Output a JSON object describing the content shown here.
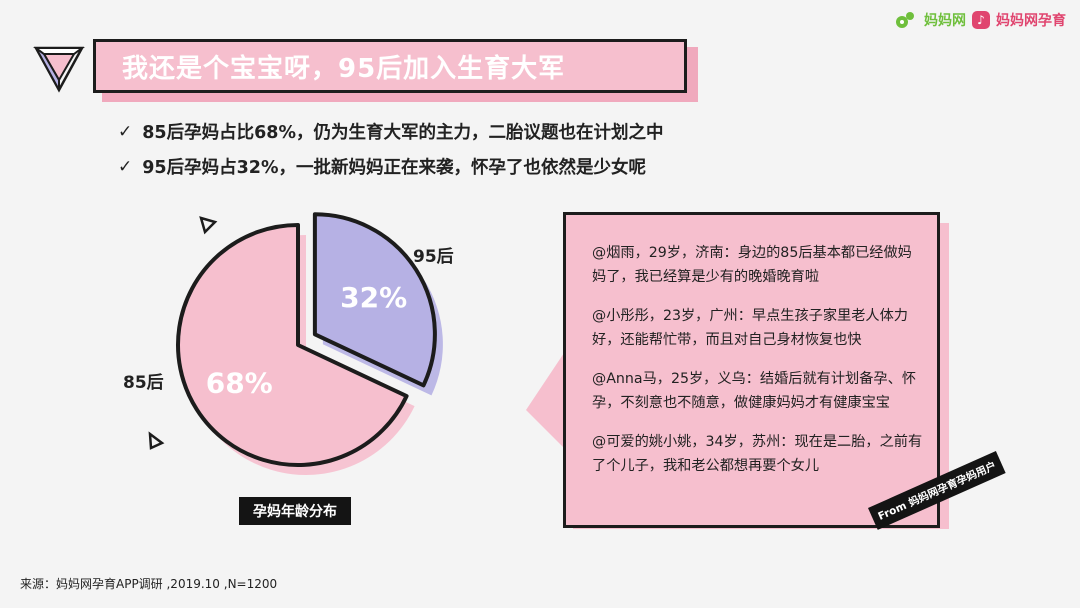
{
  "brand": {
    "logo1_text": "妈妈网",
    "logo2_text": "妈妈网孕育"
  },
  "title": "我还是个宝宝呀，95后加入生育大军",
  "bullets": [
    "85后孕妈占比68%，仍为生育大军的主力，二胎议题也在计划之中",
    "95后孕妈占32%，一批新妈妈正在来袭，怀孕了也依然是少女呢"
  ],
  "chart_data": {
    "type": "pie",
    "title": "孕妈年龄分布",
    "slices": [
      {
        "label": "85后",
        "value": 68,
        "display": "68%",
        "color": "#f6bfce"
      },
      {
        "label": "95后",
        "value": 32,
        "display": "32%",
        "color": "#b6b1e4"
      }
    ],
    "legend": "none",
    "exploded": "95后"
  },
  "quotes": [
    "@烟雨，29岁，济南：身边的85后基本都已经做妈妈了，我已经算是少有的晚婚晚育啦",
    "@小彤彤，23岁，广州：早点生孩子家里老人体力好，还能帮忙带，而且对自己身材恢复也快",
    "@Anna马，25岁，义乌：结婚后就有计划备孕、怀孕，不刻意也不随意，做健康妈妈才有健康宝宝",
    "@可爱的姚小姚，34岁，苏州：现在是二胎，之前有了个儿子，我和老公都想再要个女儿"
  ],
  "from_tag": "From 妈妈网孕育孕妈用户",
  "source": "来源：妈妈网孕育APP调研 ,2019.10 ,N=1200",
  "colors": {
    "pink": "#f6bfce",
    "lavender": "#b6b1e4",
    "dark": "#1c1c1c"
  }
}
